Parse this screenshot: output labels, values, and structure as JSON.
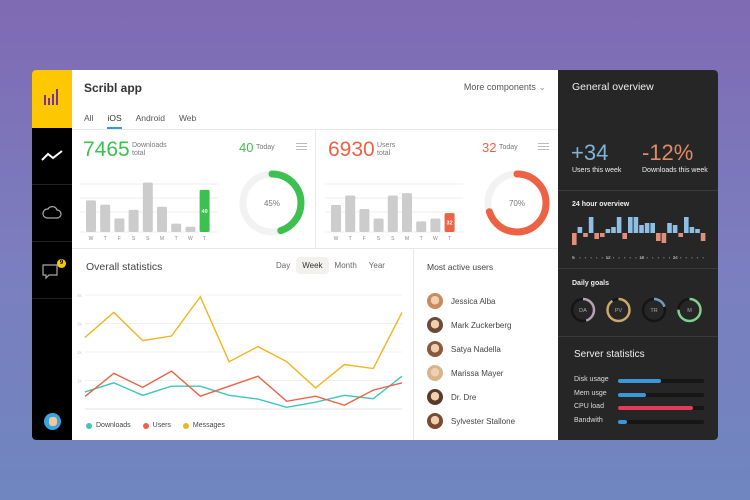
{
  "app": {
    "title": "Scribl app",
    "more_components": "More components",
    "tabs": [
      "All",
      "iOS",
      "Android",
      "Web"
    ],
    "active_tab": "iOS"
  },
  "sidebar": {
    "items": [
      "bar-chart-logo",
      "line-chart-icon",
      "cloud-icon",
      "chat-icon"
    ],
    "chat_badge": "9"
  },
  "downloads": {
    "total": "7465",
    "total_label_1": "Downloads",
    "total_label_2": "total",
    "today": "40",
    "today_label": "Today",
    "percent": 45,
    "percent_label": "45%",
    "color": "#3cc04f",
    "days": [
      "W",
      "T",
      "F",
      "S",
      "S",
      "M",
      "T",
      "W",
      "T"
    ],
    "values": [
      30,
      26,
      13,
      21,
      47,
      24,
      8,
      5,
      40
    ],
    "highlight_label": "40"
  },
  "users": {
    "total": "6930",
    "total_label_1": "Users",
    "total_label_2": "total",
    "today": "32",
    "today_label": "Today",
    "percent": 70,
    "percent_label": "70%",
    "color": "#ed6145",
    "days": [
      "W",
      "T",
      "F",
      "S",
      "S",
      "M",
      "T",
      "W",
      "T"
    ],
    "values": [
      46,
      62,
      39,
      23,
      62,
      66,
      18,
      23,
      32
    ],
    "highlight_label": "32"
  },
  "overall": {
    "title": "Overall statistics",
    "periods": [
      "Day",
      "Week",
      "Month",
      "Year"
    ],
    "active_period": "Week"
  },
  "chart_data": {
    "type": "line",
    "ylim": [
      0,
      4000
    ],
    "yticks": [
      "1k",
      "2k",
      "3k",
      "4k"
    ],
    "grid": true,
    "legend": "bottom-left",
    "series": [
      {
        "name": "Downloads",
        "color": "#3dc6be",
        "values": [
          600,
          920,
          480,
          800,
          800,
          480,
          350,
          60,
          240,
          480,
          360,
          1150
        ]
      },
      {
        "name": "Users",
        "color": "#ed6145",
        "values": [
          440,
          1250,
          760,
          1330,
          450,
          800,
          1150,
          270,
          450,
          130,
          660,
          920
        ]
      },
      {
        "name": "Messages",
        "color": "#f0b51c",
        "values": [
          2510,
          3390,
          2400,
          2560,
          3940,
          1660,
          2190,
          1660,
          740,
          1560,
          1420,
          3390
        ]
      }
    ]
  },
  "active_users": {
    "title": "Most active users",
    "users": [
      {
        "name": "Jessica Alba",
        "color": "#c98a5e"
      },
      {
        "name": "Mark Zuckerberg",
        "color": "#6b4a3a"
      },
      {
        "name": "Satya Nadella",
        "color": "#8a5a3c"
      },
      {
        "name": "Marissa Mayer",
        "color": "#d9b48a"
      },
      {
        "name": "Dr. Dre",
        "color": "#5a3a2a"
      },
      {
        "name": "Sylvester Stallone",
        "color": "#7a4a32"
      }
    ]
  },
  "general": {
    "title": "General overview",
    "users_week": "+34",
    "users_week_label": "Users this week",
    "downloads_week": "-12%",
    "downloads_week_label": "Downloads this week",
    "users_color": "#7fb3da",
    "downloads_color": "#e08a68"
  },
  "hour24": {
    "title": "24 hour overview",
    "ticks": [
      "6",
      "12",
      "18",
      "24"
    ],
    "values": [
      -6,
      3,
      -2,
      8,
      -3,
      -2,
      2,
      3,
      8,
      -3,
      8,
      8,
      4,
      5,
      5,
      -4,
      -5,
      5,
      4,
      -2,
      8,
      3,
      2,
      -4
    ]
  },
  "goals": {
    "title": "Daily goals",
    "items": [
      {
        "label": "DA",
        "value": 0.45,
        "color": "#b5a3b3"
      },
      {
        "label": "PV",
        "value": 0.9,
        "color": "#c9a96e"
      },
      {
        "label": "TR",
        "value": 0.2,
        "color": "#6e9ec4"
      },
      {
        "label": "M",
        "value": 0.75,
        "color": "#7fd08e"
      }
    ]
  },
  "server": {
    "title": "Server statistics",
    "items": [
      {
        "label": "Disk usage",
        "value": 0.5,
        "color": "#3a98da"
      },
      {
        "label": "Mem usge",
        "value": 0.33,
        "color": "#3a98da"
      },
      {
        "label": "CPU load",
        "value": 0.87,
        "color": "#e63a5a"
      },
      {
        "label": "Bandwith",
        "value": 0.1,
        "color": "#3a98da"
      }
    ]
  }
}
